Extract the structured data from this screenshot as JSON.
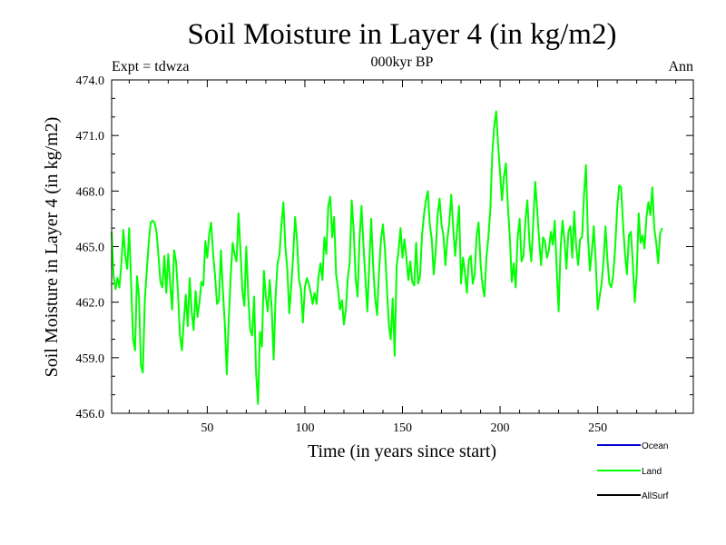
{
  "chart_data": {
    "type": "line",
    "title": "Soil Moisture in Layer 4 (in kg/m2)",
    "subtitle_left": "Expt = tdwza",
    "subtitle_center": "000kyr BP",
    "subtitle_right": "Ann",
    "xlabel": "Time (in years since start)",
    "ylabel": "Soil Moisture in Layer 4 (in kg/m2)",
    "xlim": [
      1,
      299
    ],
    "ylim": [
      456.0,
      474.0
    ],
    "xticks": [
      50,
      100,
      150,
      200,
      250
    ],
    "yticks": [
      "456.0",
      "459.0",
      "462.0",
      "465.0",
      "468.0",
      "471.0",
      "474.0"
    ],
    "grid": false,
    "legend_position": "bottom-right",
    "series": [
      {
        "name": "Ocean",
        "color": "#0000cc",
        "values": []
      },
      {
        "name": "Land",
        "color": "#00ff00",
        "x_start": 1,
        "values": [
          465.8,
          463.4,
          462.7,
          463.3,
          462.8,
          464.1,
          465.9,
          464.5,
          463.8,
          466.0,
          463.0,
          460.0,
          459.4,
          463.4,
          462.3,
          458.6,
          458.2,
          462.1,
          463.7,
          465.2,
          466.3,
          466.4,
          466.3,
          465.8,
          464.5,
          463.1,
          462.8,
          464.5,
          462.5,
          464.6,
          463.0,
          461.6,
          464.8,
          464.2,
          462.5,
          460.2,
          459.4,
          461.0,
          462.4,
          460.7,
          463.3,
          461.5,
          460.5,
          462.6,
          461.2,
          462.0,
          463.1,
          462.9,
          465.3,
          464.4,
          465.7,
          466.3,
          464.6,
          463.4,
          461.9,
          462.1,
          464.8,
          462.6,
          460.8,
          458.1,
          461.1,
          463.4,
          465.2,
          464.6,
          464.2,
          466.8,
          464.8,
          462.6,
          461.8,
          465.0,
          462.3,
          460.5,
          460.2,
          462.3,
          458.2,
          456.5,
          460.4,
          459.6,
          463.7,
          462.3,
          461.5,
          463.2,
          461.7,
          458.9,
          462.3,
          464.1,
          464.6,
          466.2,
          467.4,
          465.0,
          463.8,
          461.4,
          462.8,
          464.5,
          466.6,
          465.3,
          463.2,
          462.7,
          460.9,
          462.8,
          463.3,
          463.0,
          462.5,
          461.9,
          462.5,
          461.9,
          463.4,
          464.1,
          463.2,
          465.5,
          464.6,
          467.2,
          467.7,
          465.5,
          466.6,
          463.5,
          462.7,
          461.6,
          462.1,
          460.8,
          461.6,
          463.3,
          464.2,
          467.5,
          465.9,
          463.3,
          462.3,
          465.4,
          467.2,
          465.1,
          463.3,
          461.5,
          464.1,
          466.5,
          463.9,
          462.2,
          461.3,
          463.7,
          465.4,
          466.2,
          464.9,
          462.8,
          460.8,
          460.0,
          462.2,
          459.1,
          463.9,
          464.8,
          466.0,
          464.4,
          465.4,
          464.4,
          463.2,
          464.2,
          463.1,
          462.9,
          465.2,
          463.0,
          463.4,
          465.6,
          466.7,
          467.5,
          468.0,
          466.2,
          465.4,
          463.5,
          464.7,
          466.7,
          467.6,
          466.2,
          465.6,
          464.0,
          465.4,
          466.3,
          467.8,
          466.0,
          464.5,
          465.9,
          467.2,
          463.0,
          464.4,
          463.6,
          462.5,
          464.3,
          464.5,
          463.0,
          463.5,
          465.6,
          466.3,
          464.1,
          462.9,
          462.3,
          464.4,
          465.5,
          467.0,
          470.0,
          471.5,
          472.3,
          470.5,
          469.0,
          467.5,
          468.8,
          469.5,
          467.2,
          465.5,
          463.1,
          464.1,
          462.8,
          465.5,
          466.5,
          464.2,
          464.5,
          466.5,
          467.5,
          465.3,
          464.2,
          466.3,
          468.5,
          467.0,
          465.4,
          464.0,
          465.5,
          465.3,
          464.4,
          464.8,
          465.8,
          465.1,
          466.4,
          463.8,
          461.5,
          464.9,
          466.4,
          465.3,
          463.8,
          465.8,
          466.1,
          464.4,
          466.9,
          465.0,
          464.0,
          465.4,
          465.5,
          467.8,
          469.4,
          465.6,
          463.7,
          464.7,
          466.1,
          464.2,
          461.6,
          462.3,
          463.0,
          464.2,
          466.1,
          464.3,
          463.0,
          462.8,
          463.5,
          465.0,
          467.1,
          468.3,
          468.2,
          466.2,
          464.6,
          463.5,
          465.6,
          465.8,
          464.1,
          462.0,
          463.5,
          466.8,
          465.2,
          465.6,
          464.9,
          466.6,
          467.4,
          466.7,
          468.2,
          466.0,
          465.2,
          464.1,
          465.7,
          466.0
        ]
      },
      {
        "name": "AllSurf",
        "color": "#000000",
        "values": []
      }
    ]
  }
}
